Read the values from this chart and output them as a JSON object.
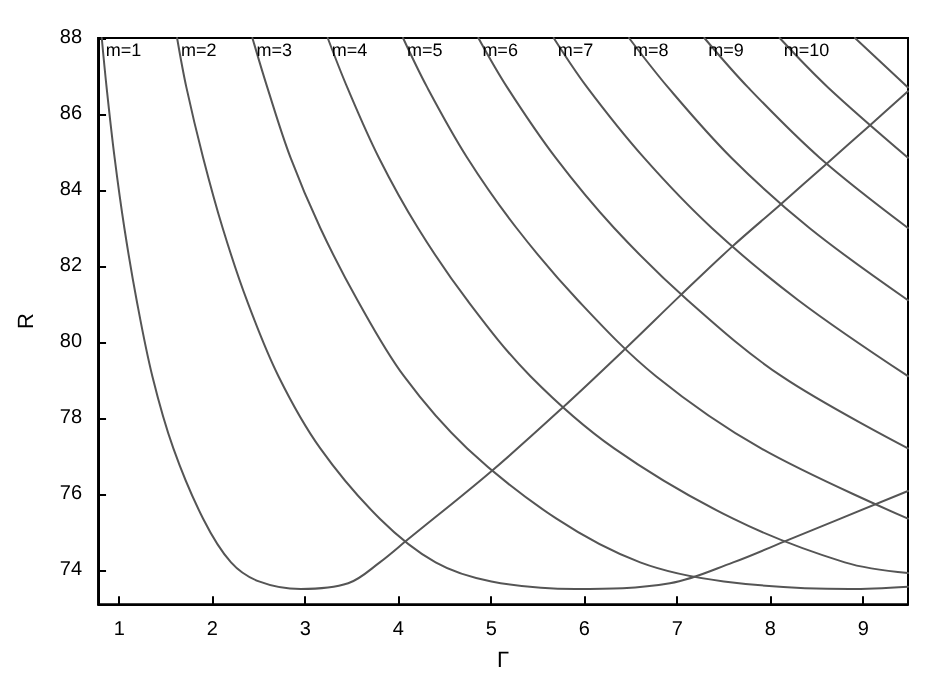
{
  "chart_data": {
    "type": "line",
    "xlabel": "Γ",
    "ylabel": "R",
    "xlim": [
      0.77,
      9.48
    ],
    "ylim": [
      73.1,
      88
    ],
    "xticks": [
      1,
      2,
      3,
      4,
      5,
      6,
      7,
      8,
      9
    ],
    "yticks": [
      74,
      76,
      78,
      80,
      82,
      84,
      86,
      88
    ],
    "grid": false,
    "legend": false,
    "series": [
      {
        "name": "m=1",
        "color": "#555555",
        "x": [
          0.81,
          0.862,
          0.948,
          1.053,
          1.185,
          1.354,
          1.58,
          1.9,
          2.2,
          2.5,
          2.95,
          3.46,
          3.8,
          4.1,
          5,
          5.76,
          6.43,
          7.03,
          7.58,
          8.1,
          8.59,
          9.06,
          9.48
        ],
        "values": [
          88,
          86.7,
          84.85,
          83.0,
          81.1,
          79.1,
          77.2,
          75.35,
          74.2,
          73.7,
          73.5,
          73.65,
          74.2,
          74.8,
          76.6,
          78.26,
          79.8,
          81.22,
          82.49,
          83.6,
          84.66,
          85.68,
          86.6
        ]
      },
      {
        "name": "m=2",
        "color": "#555555",
        "x": [
          1.62,
          1.72,
          1.9,
          2.11,
          2.37,
          2.71,
          3.16,
          3.8,
          4.4,
          5.0,
          5.9,
          6.92,
          7.6,
          8.2,
          9.48
        ],
        "values": [
          88,
          86.7,
          84.85,
          83.0,
          81.1,
          79.1,
          77.2,
          75.35,
          74.2,
          73.7,
          73.5,
          73.65,
          74.2,
          74.8,
          76.08
        ]
      },
      {
        "name": "m=3",
        "color": "#555555",
        "x": [
          2.43,
          2.59,
          2.84,
          3.16,
          3.56,
          4.06,
          4.74,
          5.7,
          6.6,
          7.5,
          8.85,
          9.48
        ],
        "values": [
          88,
          86.7,
          84.85,
          83.0,
          81.1,
          79.1,
          77.2,
          75.35,
          74.2,
          73.7,
          73.5,
          73.56
        ]
      },
      {
        "name": "m=4",
        "color": "#555555",
        "x": [
          3.24,
          3.45,
          3.79,
          4.21,
          4.74,
          5.42,
          6.32,
          7.6,
          8.8,
          9.48
        ],
        "values": [
          88,
          86.7,
          84.85,
          83.0,
          81.1,
          79.1,
          77.2,
          75.35,
          74.2,
          73.92
        ]
      },
      {
        "name": "m=5",
        "color": "#555555",
        "x": [
          4.05,
          4.31,
          4.74,
          5.27,
          5.93,
          6.77,
          7.9,
          9.48
        ],
        "values": [
          88,
          86.7,
          84.85,
          83.0,
          81.1,
          79.1,
          77.2,
          75.35
        ]
      },
      {
        "name": "m=6",
        "color": "#555555",
        "x": [
          4.86,
          5.17,
          5.69,
          6.32,
          7.11,
          8.12,
          9.48
        ],
        "values": [
          88,
          86.7,
          84.85,
          83.0,
          81.1,
          79.1,
          77.2
        ]
      },
      {
        "name": "m=7",
        "color": "#555555",
        "x": [
          5.67,
          6.03,
          6.64,
          7.37,
          8.3,
          9.48
        ],
        "values": [
          88,
          86.7,
          84.85,
          83.0,
          81.1,
          79.1
        ]
      },
      {
        "name": "m=8",
        "color": "#555555",
        "x": [
          6.48,
          6.9,
          7.58,
          8.42,
          9.48
        ],
        "values": [
          88,
          86.7,
          84.85,
          83.0,
          81.1
        ]
      },
      {
        "name": "m=9",
        "color": "#555555",
        "x": [
          7.29,
          7.76,
          8.53,
          9.48
        ],
        "values": [
          88,
          86.7,
          84.85,
          83.0
        ]
      },
      {
        "name": "m=10",
        "color": "#555555",
        "x": [
          8.1,
          8.62,
          9.48
        ],
        "values": [
          88,
          86.7,
          84.85
        ]
      },
      {
        "color": "#555555",
        "x": [
          8.91,
          9.48
        ],
        "values": [
          88,
          86.7
        ]
      }
    ]
  }
}
